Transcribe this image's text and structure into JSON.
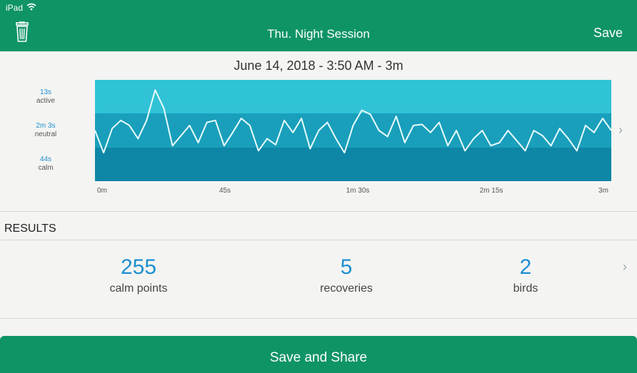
{
  "status_bar": {
    "device": "iPad"
  },
  "nav": {
    "title": "Thu. Night Session",
    "save_label": "Save"
  },
  "session": {
    "date_line": "June 14, 2018 - 3:50 AM - 3m"
  },
  "chart_data": {
    "type": "line",
    "bands": [
      {
        "value": "13s",
        "name": "active",
        "color": "#30c2d6"
      },
      {
        "value": "2m 3s",
        "name": "neutral",
        "color": "#199fbb"
      },
      {
        "value": "44s",
        "name": "calm",
        "color": "#0e86a6"
      }
    ],
    "x_ticks": [
      "0m",
      "45s",
      "1m 30s",
      "2m 15s",
      "3m"
    ],
    "xlim": [
      0,
      180
    ],
    "ylim": [
      0,
      1
    ],
    "line_color": "#e8fbff",
    "x": [
      0,
      3,
      6,
      9,
      12,
      15,
      18,
      21,
      24,
      27,
      30,
      33,
      36,
      39,
      42,
      45,
      48,
      51,
      54,
      57,
      60,
      63,
      66,
      69,
      72,
      75,
      78,
      81,
      84,
      87,
      90,
      93,
      96,
      99,
      102,
      105,
      108,
      111,
      114,
      117,
      120,
      123,
      126,
      129,
      132,
      135,
      138,
      141,
      144,
      147,
      150,
      153,
      156,
      159,
      162,
      165,
      168,
      171,
      174,
      177,
      180
    ],
    "y": [
      0.5,
      0.28,
      0.52,
      0.6,
      0.55,
      0.42,
      0.6,
      0.9,
      0.72,
      0.35,
      0.45,
      0.55,
      0.38,
      0.58,
      0.6,
      0.35,
      0.48,
      0.62,
      0.55,
      0.3,
      0.42,
      0.36,
      0.6,
      0.48,
      0.62,
      0.32,
      0.5,
      0.58,
      0.42,
      0.28,
      0.55,
      0.7,
      0.66,
      0.5,
      0.44,
      0.64,
      0.38,
      0.55,
      0.56,
      0.48,
      0.58,
      0.35,
      0.5,
      0.3,
      0.42,
      0.5,
      0.35,
      0.38,
      0.5,
      0.4,
      0.3,
      0.5,
      0.45,
      0.35,
      0.52,
      0.42,
      0.3,
      0.55,
      0.48,
      0.62,
      0.5
    ]
  },
  "results": {
    "heading": "RESULTS",
    "stats": [
      {
        "value": "255",
        "label": "calm points"
      },
      {
        "value": "5",
        "label": "recoveries"
      },
      {
        "value": "2",
        "label": "birds"
      }
    ]
  },
  "share": {
    "label": "Save and Share"
  }
}
